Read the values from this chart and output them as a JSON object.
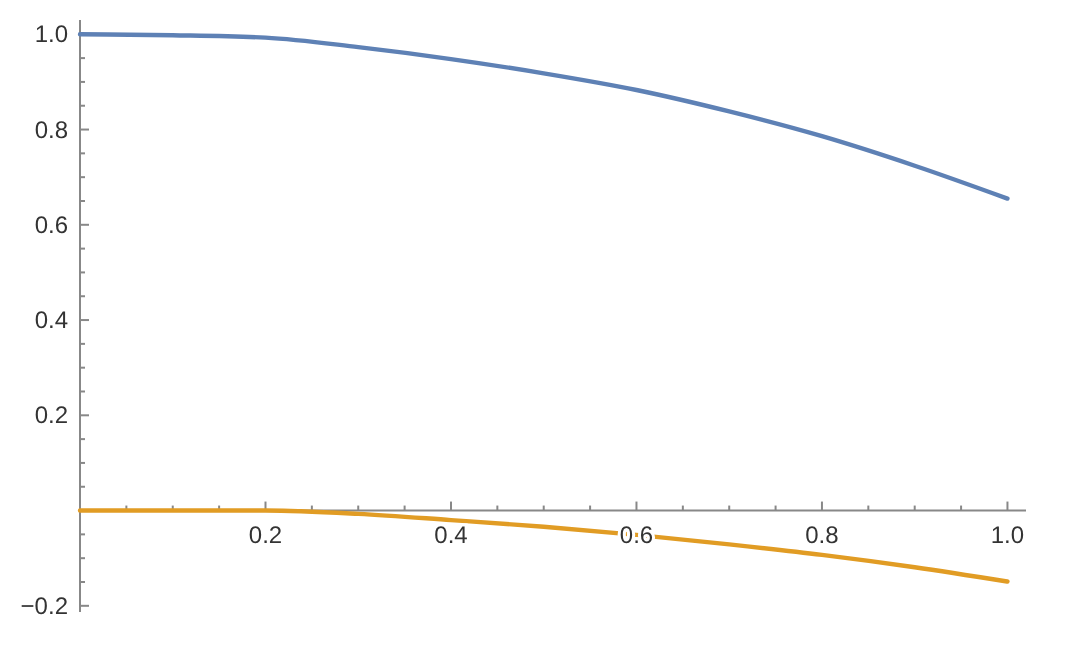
{
  "chart_data": {
    "type": "line",
    "x": [
      0,
      0.1,
      0.2,
      0.3,
      0.4,
      0.5,
      0.6,
      0.7,
      0.8,
      0.9,
      1.0
    ],
    "series": [
      {
        "color": "#5e81b5",
        "values": [
          1.0,
          0.998,
          0.993,
          0.973,
          0.948,
          0.918,
          0.883,
          0.838,
          0.786,
          0.724,
          0.655
        ]
      },
      {
        "color": "#e19c24",
        "values": [
          0,
          0,
          0,
          -0.007,
          -0.02,
          -0.034,
          -0.051,
          -0.071,
          -0.093,
          -0.119,
          -0.149
        ]
      }
    ],
    "xlim": [
      0,
      1.02
    ],
    "ylim": [
      -0.213,
      1.03
    ],
    "xticks": [
      {
        "value": 0.05,
        "label": null
      },
      {
        "value": 0.1,
        "label": null
      },
      {
        "value": 0.15,
        "label": null
      },
      0.2,
      {
        "value": 0.25,
        "label": null
      },
      {
        "value": 0.3,
        "label": null
      },
      {
        "value": 0.35,
        "label": null
      },
      0.4,
      {
        "value": 0.45,
        "label": null
      },
      {
        "value": 0.5,
        "label": null
      },
      {
        "value": 0.55,
        "label": null
      },
      0.6,
      {
        "value": 0.65,
        "label": null
      },
      {
        "value": 0.7,
        "label": null
      },
      {
        "value": 0.75,
        "label": null
      },
      0.8,
      {
        "value": 0.85,
        "label": null
      },
      {
        "value": 0.9,
        "label": null
      },
      {
        "value": 0.95,
        "label": null
      },
      {
        "value": 1,
        "label": "1.0"
      }
    ],
    "yticks": [
      -0.2,
      {
        "value": -0.15,
        "label": null
      },
      {
        "value": -0.1,
        "label": null
      },
      {
        "value": -0.05,
        "label": null
      },
      {
        "value": 0.05,
        "label": null
      },
      {
        "value": 0.1,
        "label": null
      },
      {
        "value": 0.15,
        "label": null
      },
      0.2,
      {
        "value": 0.25,
        "label": null
      },
      {
        "value": 0.3,
        "label": null
      },
      {
        "value": 0.35,
        "label": null
      },
      0.4,
      {
        "value": 0.45,
        "label": null
      },
      {
        "value": 0.5,
        "label": null
      },
      {
        "value": 0.55,
        "label": null
      },
      0.6,
      {
        "value": 0.65,
        "label": null
      },
      {
        "value": 0.7,
        "label": null
      },
      {
        "value": 0.75,
        "label": null
      },
      0.8,
      {
        "value": 0.85,
        "label": null
      },
      {
        "value": 0.9,
        "label": null
      },
      {
        "value": 0.95,
        "label": null
      },
      {
        "value": 1,
        "label": "1.0"
      }
    ],
    "marker": "none",
    "line_style": "solid"
  }
}
